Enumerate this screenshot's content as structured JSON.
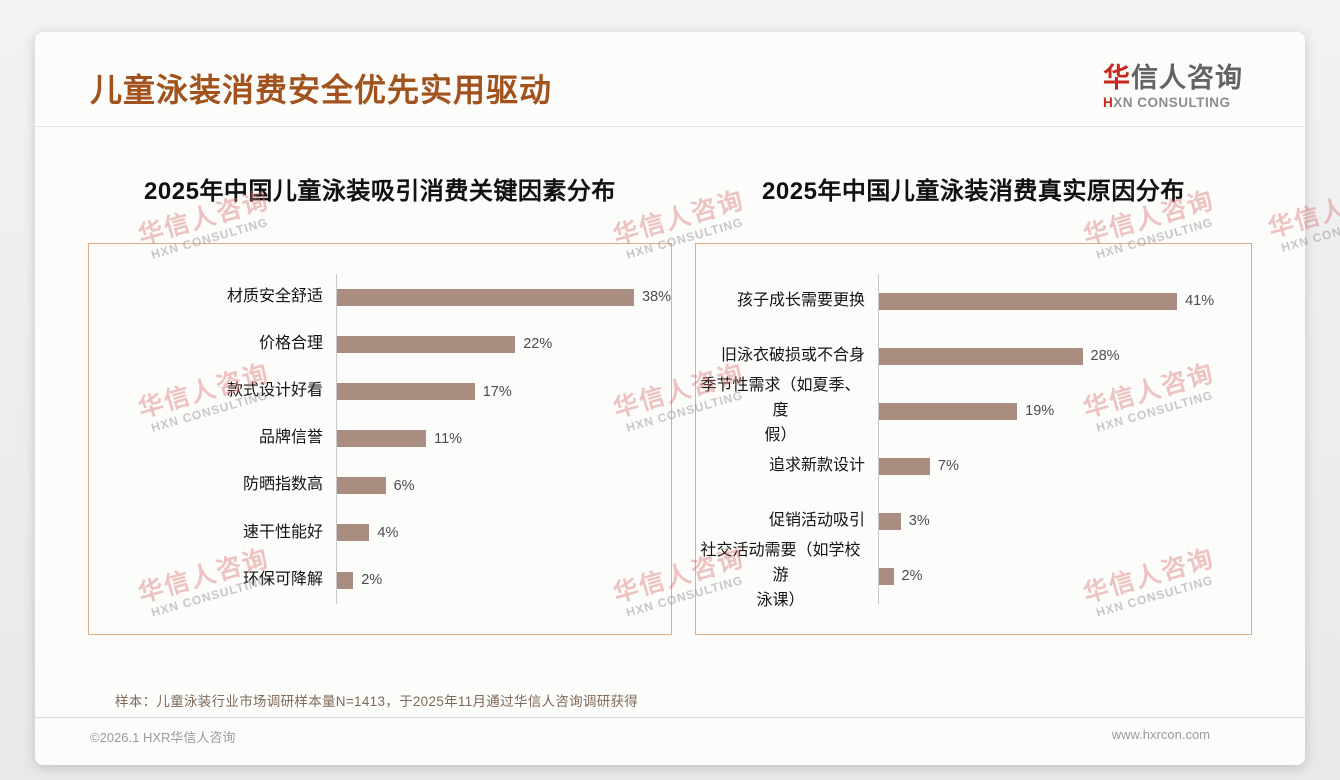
{
  "header": {
    "title": "儿童泳装消费安全优先实用驱动",
    "logo": {
      "cn_first": "华",
      "cn_rest": "信人咨询",
      "en_first": "H",
      "en_rest": "XN CONSULTING"
    }
  },
  "watermark": {
    "line1": "华信人咨询",
    "line2": "HXN CONSULTING"
  },
  "chart_data": [
    {
      "type": "bar",
      "orientation": "horizontal",
      "title": "2025年中国儿童泳装吸引消费关键因素分布",
      "categories": [
        "材质安全舒适",
        "价格合理",
        "款式设计好看",
        "品牌信誉",
        "防晒指数高",
        "速干性能好",
        "环保可降解"
      ],
      "values": [
        38,
        22,
        17,
        11,
        6,
        4,
        2
      ],
      "unit": "%",
      "xlim": [
        0,
        41
      ],
      "grid": false,
      "legend": false,
      "bar_color": "#a88d80"
    },
    {
      "type": "bar",
      "orientation": "horizontal",
      "title": "2025年中国儿童泳装消费真实原因分布",
      "categories": [
        "孩子成长需要更换",
        "旧泳衣破损或不合身",
        "季节性需求（如夏季、度\n假）",
        "追求新款设计",
        "促销活动吸引",
        "社交活动需要（如学校游\n泳课）"
      ],
      "values": [
        41,
        28,
        19,
        7,
        3,
        2
      ],
      "unit": "%",
      "xlim": [
        0,
        45
      ],
      "grid": false,
      "legend": false,
      "bar_color": "#a88d80"
    }
  ],
  "footnote": "样本：儿童泳装行业市场调研样本量N=1413，于2025年11月通过华信人咨询调研获得",
  "footer": {
    "copyright": "©2026.1 HXR华信人咨询",
    "website": "www.hxrcon.com"
  }
}
